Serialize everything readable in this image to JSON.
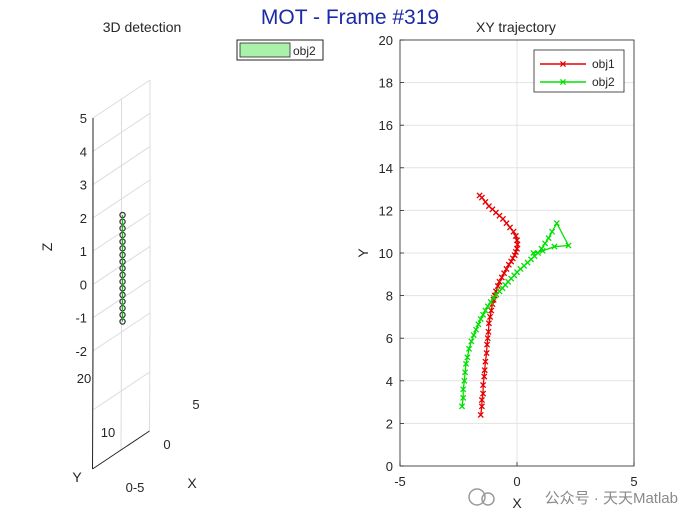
{
  "figure": {
    "main_title": "MOT - Frame #319",
    "watermark": "公众号 · 天天Matlab"
  },
  "chart_data": [
    {
      "type": "scatter",
      "title": "3D detection",
      "xlabel": "X",
      "ylabel": "Y",
      "zlabel": "Z",
      "xlim": [
        -5,
        5
      ],
      "ylim": [
        0,
        20
      ],
      "zlim": [
        -2,
        5
      ],
      "x_ticks": [
        "0",
        "5"
      ],
      "y_ticks": [
        "10",
        "20"
      ],
      "y_origin_label": "0-5",
      "z_ticks": [
        "-2",
        "-1",
        "0",
        "1",
        "2",
        "3",
        "4",
        "5"
      ],
      "grid": true,
      "legend": [
        "obj2"
      ],
      "legend_color": "#aaf2aa",
      "series": [
        {
          "name": "obj2",
          "color": "#000000",
          "marker": "o",
          "x": [
            0.0,
            0.0,
            0.0,
            0.0,
            0.0,
            0.0,
            0.0,
            0.0,
            0.0,
            0.0,
            0.0,
            0.0,
            0.0,
            0.0,
            0.0,
            0.0,
            0.0
          ],
          "y": [
            0,
            0,
            0,
            0,
            0,
            0,
            0,
            0,
            0,
            0,
            0,
            0,
            0,
            0,
            0,
            0,
            0
          ],
          "z": [
            -1.0,
            -0.8,
            -0.6,
            -0.4,
            -0.2,
            0.0,
            0.2,
            0.4,
            0.6,
            0.8,
            1.0,
            1.2,
            1.4,
            1.6,
            1.8,
            2.0,
            2.2
          ]
        }
      ]
    },
    {
      "type": "line",
      "title": "XY trajectory",
      "xlabel": "X",
      "ylabel": "Y",
      "xlim": [
        -5,
        5
      ],
      "ylim": [
        0,
        20
      ],
      "x_ticks": [
        -5,
        0,
        5
      ],
      "y_ticks": [
        0,
        2,
        4,
        6,
        8,
        10,
        12,
        14,
        16,
        18,
        20
      ],
      "grid": true,
      "legend_position": "top-right",
      "series": [
        {
          "name": "obj1",
          "color": "#e60000",
          "marker": "x",
          "x": [
            -1.55,
            -1.5,
            -1.5,
            -1.45,
            -1.45,
            -1.4,
            -1.38,
            -1.35,
            -1.3,
            -1.28,
            -1.25,
            -1.22,
            -1.2,
            -1.15,
            -1.1,
            -1.05,
            -1.0,
            -0.95,
            -0.9,
            -0.82,
            -0.75,
            -0.65,
            -0.55,
            -0.45,
            -0.35,
            -0.25,
            -0.18,
            -0.1,
            -0.05,
            0.0,
            0.02,
            0.0,
            -0.05,
            -0.15,
            -0.3,
            -0.45,
            -0.6,
            -0.75,
            -0.9,
            -1.05,
            -1.2,
            -1.35,
            -1.5,
            -1.6
          ],
          "y": [
            2.4,
            2.8,
            3.1,
            3.4,
            3.8,
            4.2,
            4.5,
            4.9,
            5.3,
            5.7,
            6.0,
            6.3,
            6.7,
            7.0,
            7.3,
            7.6,
            7.8,
            8.0,
            8.2,
            8.45,
            8.65,
            8.85,
            9.05,
            9.25,
            9.45,
            9.6,
            9.75,
            9.9,
            10.05,
            10.2,
            10.4,
            10.6,
            10.8,
            11.0,
            11.2,
            11.4,
            11.6,
            11.75,
            11.9,
            12.05,
            12.2,
            12.4,
            12.6,
            12.7
          ]
        },
        {
          "name": "obj2",
          "color": "#00e000",
          "marker": "x",
          "x": [
            -2.35,
            -2.3,
            -2.3,
            -2.25,
            -2.22,
            -2.18,
            -2.12,
            -2.05,
            -1.95,
            -1.85,
            -1.75,
            -1.65,
            -1.55,
            -1.45,
            -1.35,
            -1.25,
            -1.12,
            -1.0,
            -0.88,
            -0.75,
            -0.62,
            -0.5,
            -0.38,
            -0.25,
            -0.12,
            0.0,
            0.15,
            0.3,
            0.45,
            0.6,
            0.75,
            0.9,
            1.05,
            1.2,
            1.35,
            1.5,
            1.7,
            2.2,
            1.6,
            1.1,
            0.7
          ],
          "y": [
            2.8,
            3.2,
            3.6,
            4.0,
            4.4,
            4.8,
            5.1,
            5.5,
            5.85,
            6.15,
            6.4,
            6.65,
            6.9,
            7.1,
            7.3,
            7.5,
            7.7,
            7.9,
            8.05,
            8.2,
            8.35,
            8.5,
            8.65,
            8.8,
            8.95,
            9.1,
            9.25,
            9.4,
            9.55,
            9.7,
            9.85,
            10.0,
            10.2,
            10.45,
            10.7,
            11.0,
            11.4,
            10.35,
            10.3,
            10.1,
            10.0
          ]
        }
      ]
    }
  ]
}
